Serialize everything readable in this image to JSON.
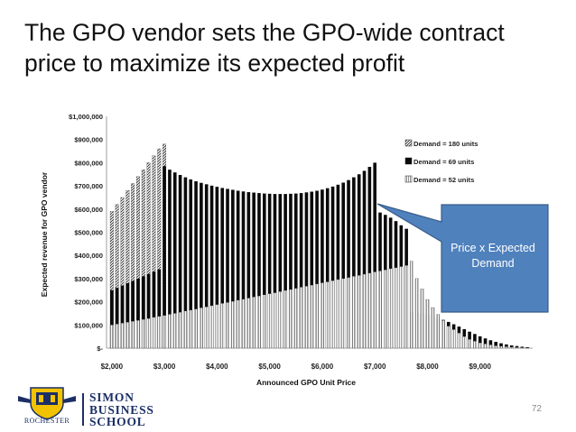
{
  "slide": {
    "title_line1": "The GPO vendor sets the GPO-wide contract",
    "title_line2": "price to maximize its expected profit",
    "callout_line1": "Price x Expected",
    "callout_line2": "Demand",
    "page_number": "72",
    "colors": {
      "callout_fill": "#4f81bd",
      "callout_border": "#385d8a",
      "text": "#111111"
    }
  },
  "footer": {
    "logo_line1": "SIMON",
    "logo_line2": "BUSINESS",
    "logo_line3": "SCHOOL",
    "university_name": "ROCHESTER"
  },
  "chart_data": {
    "type": "bar",
    "stacked": false,
    "xlabel": "Announced GPO Unit Price",
    "ylabel": "Expected revenue for GPO vendor",
    "x_ticks": [
      "$2,000",
      "$3,000",
      "$4,000",
      "$5,000",
      "$6,000",
      "$7,000",
      "$8,000",
      "$9,000"
    ],
    "x_tick_values": [
      2000,
      3000,
      4000,
      5000,
      6000,
      7000,
      8000,
      9000
    ],
    "y_ticks": [
      "$-",
      "$100,000",
      "$200,000",
      "$300,000",
      "$400,000",
      "$500,000",
      "$600,000",
      "$700,000",
      "$800,000",
      "$900,000",
      "$1,000,000"
    ],
    "ylim": [
      0,
      1000000
    ],
    "xlim": [
      1900,
      10000
    ],
    "grid": false,
    "legend_position": "top-right",
    "x": [
      2000,
      2100,
      2200,
      2300,
      2400,
      2500,
      2600,
      2700,
      2800,
      2900,
      3000,
      3100,
      3200,
      3300,
      3400,
      3500,
      3600,
      3700,
      3800,
      3900,
      4000,
      4100,
      4200,
      4300,
      4400,
      4500,
      4600,
      4700,
      4800,
      4900,
      5000,
      5100,
      5200,
      5300,
      5400,
      5500,
      5600,
      5700,
      5800,
      5900,
      6000,
      6100,
      6200,
      6300,
      6400,
      6500,
      6600,
      6700,
      6800,
      6900,
      7000,
      7100,
      7200,
      7300,
      7400,
      7500,
      7600,
      7700,
      7800,
      7900,
      8000,
      8100,
      8200,
      8300,
      8400,
      8500,
      8600,
      8700,
      8800,
      8900,
      9000,
      9100,
      9200,
      9300,
      9400,
      9500,
      9600,
      9700,
      9800,
      9900
    ],
    "series": [
      {
        "name": "Demand = 180 units",
        "pattern": "diagonal-hatch",
        "values": [
          590000,
          620000,
          650000,
          680000,
          710000,
          740000,
          770000,
          800000,
          830000,
          860000,
          880000,
          null,
          null,
          null,
          null,
          null,
          null,
          null,
          null,
          null,
          null,
          null,
          null,
          null,
          null,
          null,
          null,
          null,
          null,
          null,
          null,
          null,
          null,
          null,
          null,
          null,
          null,
          null,
          null,
          null,
          null,
          null,
          null,
          null,
          null,
          null,
          null,
          null,
          null,
          null,
          null,
          null,
          null,
          null,
          null,
          null,
          null,
          null,
          null,
          null,
          null,
          null,
          null,
          null,
          null,
          null,
          null,
          null,
          null,
          null,
          null,
          null,
          null,
          null,
          null,
          null,
          null,
          null,
          null,
          null
        ]
      },
      {
        "name": "Demand = 69 units",
        "pattern": "solid",
        "values": [
          250000,
          260000,
          270000,
          280000,
          290000,
          300000,
          310000,
          320000,
          330000,
          340000,
          785000,
          770000,
          758000,
          747000,
          737000,
          728000,
          720000,
          713000,
          707000,
          701000,
          696000,
          691000,
          687000,
          683000,
          679000,
          676000,
          673000,
          671000,
          669000,
          667000,
          666000,
          665000,
          665000,
          665000,
          666000,
          667000,
          669000,
          672000,
          675000,
          679000,
          684000,
          690000,
          697000,
          705000,
          714000,
          725000,
          737000,
          750000,
          765000,
          782000,
          800000,
          585000,
          575000,
          563000,
          548000,
          530000,
          515000,
          155000,
          152000,
          148000,
          143000,
          137000,
          130000,
          122000,
          113000,
          103000,
          93000,
          82000,
          71000,
          61000,
          51000,
          42000,
          34000,
          27000,
          21000,
          16000,
          12000,
          9000,
          6000,
          4000
        ]
      },
      {
        "name": "Demand = 52 units",
        "pattern": "vertical-hatch",
        "values": [
          100000,
          104000,
          108000,
          112000,
          116000,
          120000,
          124000,
          128000,
          133000,
          137000,
          141000,
          146000,
          150000,
          155000,
          160000,
          164000,
          169000,
          174000,
          178000,
          183000,
          188000,
          193000,
          197000,
          202000,
          207000,
          211000,
          216000,
          221000,
          225000,
          230000,
          235000,
          239000,
          244000,
          249000,
          253000,
          258000,
          263000,
          267000,
          272000,
          277000,
          282000,
          286000,
          291000,
          296000,
          300000,
          305000,
          310000,
          314000,
          319000,
          324000,
          329000,
          333000,
          338000,
          343000,
          347000,
          352000,
          357000,
          375000,
          300000,
          255000,
          210000,
          175000,
          145000,
          120000,
          95000,
          80000,
          65000,
          50000,
          38000,
          30000,
          23000,
          18000,
          14000,
          10000,
          8000,
          6000,
          4000,
          3000,
          2000,
          1500
        ]
      }
    ]
  }
}
